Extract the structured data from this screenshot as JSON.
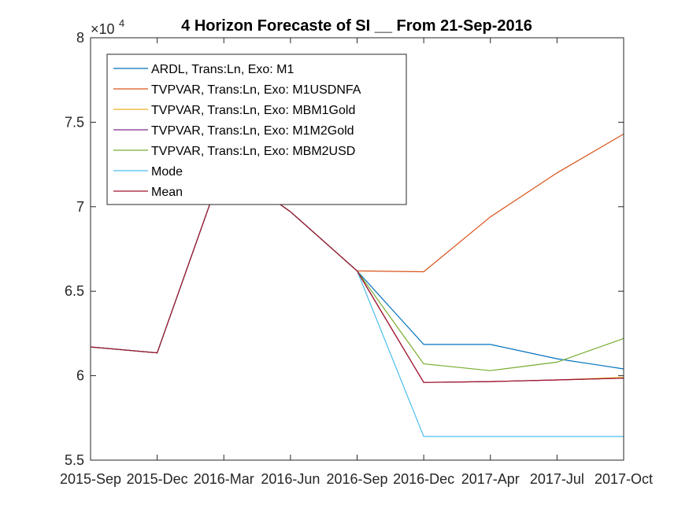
{
  "chart_data": {
    "type": "line",
    "title": "4 Horizon Forecaste of SI __ From 21-Sep-2016",
    "xlabel": "",
    "ylabel": "",
    "y_exponent_label": "×10",
    "y_exponent_power": "4",
    "categories": [
      "2015-Sep",
      "2015-Dec",
      "2016-Mar",
      "2016-Jun",
      "2016-Sep",
      "2016-Dec",
      "2017-Apr",
      "2017-Jul",
      "2017-Oct"
    ],
    "ylim": [
      5.5,
      8
    ],
    "yticks": [
      5.5,
      6,
      6.5,
      7,
      7.5,
      8
    ],
    "ytick_labels": [
      "5.5",
      "6",
      "6.5",
      "7",
      "7.5",
      "8"
    ],
    "legend_position": "top-left",
    "grid": false,
    "series": [
      {
        "name": "ARDL, Trans:Ln, Exo: M1",
        "color": "#0072BD",
        "values": [
          6.17,
          6.135,
          7.25,
          6.97,
          6.62,
          6.185,
          6.185,
          6.1,
          6.04
        ]
      },
      {
        "name": "TVPVAR, Trans:Ln, Exo: M1USDNFA",
        "color": "#D95319",
        "values": [
          6.17,
          6.135,
          7.25,
          6.97,
          6.62,
          6.615,
          6.94,
          7.2,
          7.43
        ]
      },
      {
        "name": "TVPVAR, Trans:Ln, Exo: MBM1Gold",
        "color": "#EDB120",
        "values": [
          6.17,
          6.135,
          7.25,
          6.97,
          6.62,
          5.96,
          5.965,
          5.975,
          5.99
        ]
      },
      {
        "name": "TVPVAR, Trans:Ln, Exo: M1M2Gold",
        "color": "#7E2F8E",
        "values": [
          6.17,
          6.135,
          7.25,
          6.97,
          6.62,
          5.96,
          5.965,
          5.975,
          5.985
        ]
      },
      {
        "name": "TVPVAR, Trans:Ln, Exo: MBM2USD",
        "color": "#77AC30",
        "values": [
          6.17,
          6.135,
          7.25,
          6.97,
          6.62,
          6.07,
          6.03,
          6.08,
          6.22
        ]
      },
      {
        "name": "Mode",
        "color": "#4DBEEE",
        "values": [
          6.17,
          6.135,
          7.25,
          6.97,
          6.62,
          5.64,
          5.64,
          5.64,
          5.64
        ]
      },
      {
        "name": "Mean",
        "color": "#A2142F",
        "values": [
          6.17,
          6.135,
          7.25,
          6.97,
          6.62,
          5.96,
          5.965,
          5.975,
          5.985
        ]
      }
    ]
  }
}
